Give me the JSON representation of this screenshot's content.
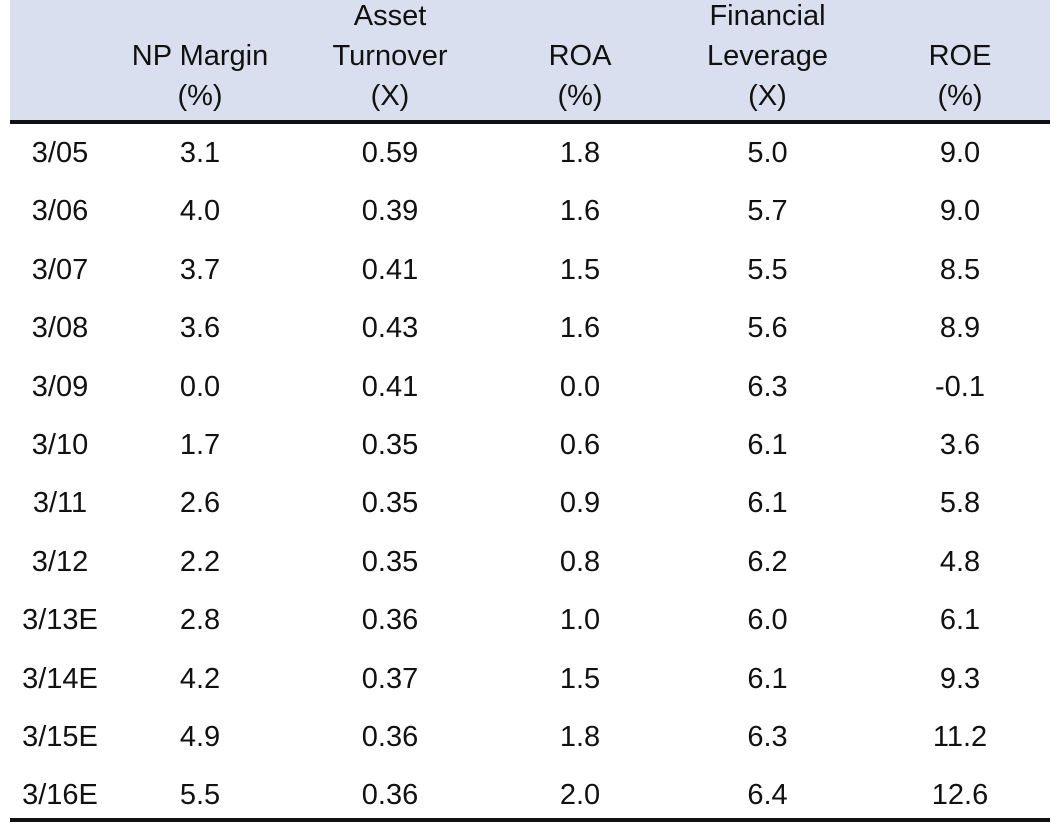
{
  "chart_data": {
    "type": "table",
    "columns": [
      {
        "lines": [
          "",
          "",
          ""
        ]
      },
      {
        "lines": [
          "",
          "NP Margin",
          "(%)"
        ]
      },
      {
        "lines": [
          "Asset",
          "Turnover",
          "(X)"
        ]
      },
      {
        "lines": [
          "",
          "ROA",
          "(%)"
        ]
      },
      {
        "lines": [
          "Financial",
          "Leverage",
          "(X)"
        ]
      },
      {
        "lines": [
          "",
          "ROE",
          "(%)"
        ]
      }
    ],
    "rows": [
      [
        "3/05",
        "3.1",
        "0.59",
        "1.8",
        "5.0",
        "9.0"
      ],
      [
        "3/06",
        "4.0",
        "0.39",
        "1.6",
        "5.7",
        "9.0"
      ],
      [
        "3/07",
        "3.7",
        "0.41",
        "1.5",
        "5.5",
        "8.5"
      ],
      [
        "3/08",
        "3.6",
        "0.43",
        "1.6",
        "5.6",
        "8.9"
      ],
      [
        "3/09",
        "0.0",
        "0.41",
        "0.0",
        "6.3",
        "-0.1"
      ],
      [
        "3/10",
        "1.7",
        "0.35",
        "0.6",
        "6.1",
        "3.6"
      ],
      [
        "3/11",
        "2.6",
        "0.35",
        "0.9",
        "6.1",
        "5.8"
      ],
      [
        "3/12",
        "2.2",
        "0.35",
        "0.8",
        "6.2",
        "4.8"
      ],
      [
        "3/13E",
        "2.8",
        "0.36",
        "1.0",
        "6.0",
        "6.1"
      ],
      [
        "3/14E",
        "4.2",
        "0.37",
        "1.5",
        "6.1",
        "9.3"
      ],
      [
        "3/15E",
        "4.9",
        "0.36",
        "1.8",
        "6.3",
        "11.2"
      ],
      [
        "3/16E",
        "5.5",
        "0.36",
        "2.0",
        "6.4",
        "12.6"
      ]
    ]
  },
  "colors": {
    "header_bg": "#d9dfee",
    "rule": "#111111",
    "text": "#111111"
  }
}
